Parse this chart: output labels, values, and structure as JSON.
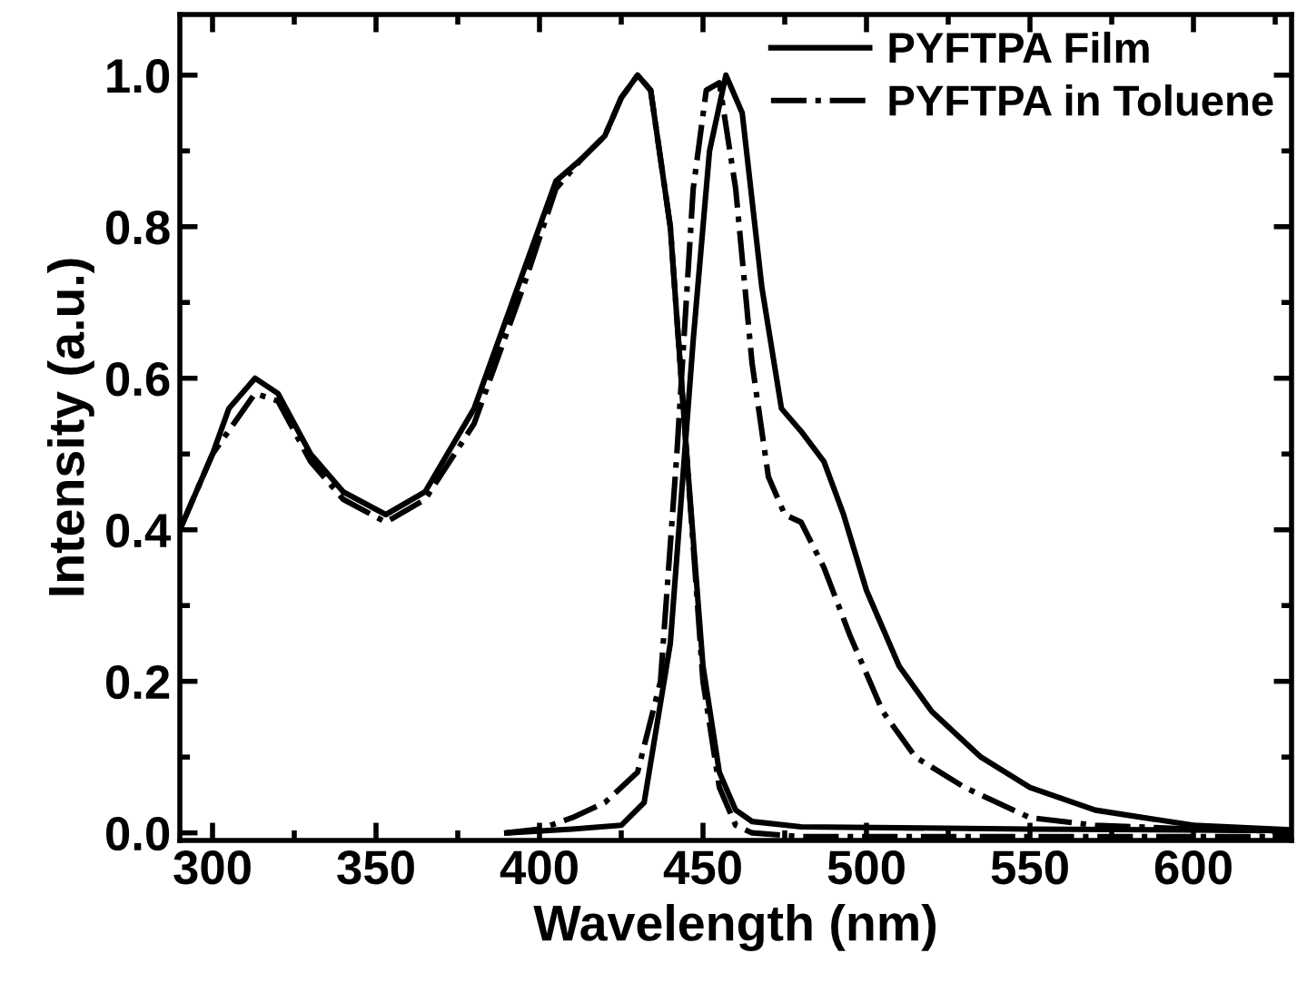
{
  "chart_data": {
    "type": "line",
    "xlabel": "Wavelength (nm)",
    "ylabel": "Intensity (a.u.)",
    "xlim": [
      290,
      630
    ],
    "ylim": [
      -0.01,
      1.08
    ],
    "xticks": [
      300,
      {
        "value": 325,
        "label": null
      },
      350,
      {
        "value": 375,
        "label": null
      },
      400,
      {
        "value": 425,
        "label": null
      },
      450,
      {
        "value": 475,
        "label": null
      },
      500,
      {
        "value": 525,
        "label": null
      },
      550,
      {
        "value": 575,
        "label": null
      },
      600,
      {
        "value": 625,
        "label": null
      }
    ],
    "yticks": [
      {
        "value": 0,
        "label": "0.0"
      },
      {
        "value": 0.1,
        "label": null
      },
      0.2,
      {
        "value": 0.3,
        "label": null
      },
      0.4,
      {
        "value": 0.5,
        "label": null
      },
      0.6,
      {
        "value": 0.7,
        "label": null
      },
      0.8,
      {
        "value": 0.9,
        "label": null
      },
      {
        "value": 1,
        "label": "1.0"
      }
    ],
    "grid": false,
    "legend": "top right",
    "series": [
      {
        "name": "PYFTPA Film",
        "color": "#000000",
        "line_style": "solid",
        "x": [
          290,
          300,
          305,
          313,
          320,
          330,
          340,
          353,
          365,
          380,
          395,
          405,
          413,
          420,
          425,
          430,
          434,
          440,
          445,
          450,
          455,
          460,
          465,
          480,
          550,
          630
        ],
        "values": [
          0.4,
          0.5,
          0.56,
          0.6,
          0.58,
          0.5,
          0.45,
          0.42,
          0.45,
          0.56,
          0.74,
          0.86,
          0.89,
          0.92,
          0.97,
          1.0,
          0.98,
          0.8,
          0.5,
          0.22,
          0.08,
          0.03,
          0.015,
          0.008,
          0.005,
          0.003
        ]
      },
      {
        "name": "PYFTPA in Toluene",
        "color": "#000000",
        "line_style": "dashdot",
        "x": [
          290,
          300,
          313,
          320,
          330,
          340,
          353,
          365,
          380,
          395,
          405,
          413,
          420,
          425,
          430,
          434,
          440,
          445,
          450,
          455,
          460,
          465,
          480,
          630
        ],
        "values": [
          0.4,
          0.5,
          0.58,
          0.57,
          0.49,
          0.44,
          0.41,
          0.44,
          0.54,
          0.72,
          0.85,
          0.89,
          0.92,
          0.97,
          1.0,
          0.98,
          0.8,
          0.5,
          0.2,
          0.06,
          0.01,
          0.0,
          -0.005,
          -0.005
        ]
      },
      {
        "color": "#000000",
        "line_style": "solid",
        "x": [
          390,
          410,
          425,
          432,
          440,
          447,
          452,
          457,
          462,
          468,
          474,
          480,
          487,
          493,
          500,
          510,
          520,
          535,
          550,
          570,
          600,
          630
        ],
        "values": [
          0.0,
          0.005,
          0.01,
          0.04,
          0.25,
          0.65,
          0.9,
          1.0,
          0.95,
          0.72,
          0.56,
          0.53,
          0.49,
          0.42,
          0.32,
          0.22,
          0.16,
          0.1,
          0.06,
          0.03,
          0.01,
          0.004
        ]
      },
      {
        "color": "#000000",
        "line_style": "dashdot",
        "x": [
          390,
          400,
          410,
          420,
          430,
          437,
          442,
          447,
          451,
          455,
          460,
          465,
          470,
          475,
          480,
          487,
          495,
          505,
          515,
          530,
          550,
          570,
          600,
          630
        ],
        "values": [
          0.0,
          0.005,
          0.02,
          0.04,
          0.08,
          0.2,
          0.5,
          0.85,
          0.98,
          0.99,
          0.85,
          0.62,
          0.47,
          0.42,
          0.41,
          0.35,
          0.26,
          0.16,
          0.1,
          0.06,
          0.02,
          0.01,
          0.005,
          0.002
        ]
      }
    ]
  }
}
